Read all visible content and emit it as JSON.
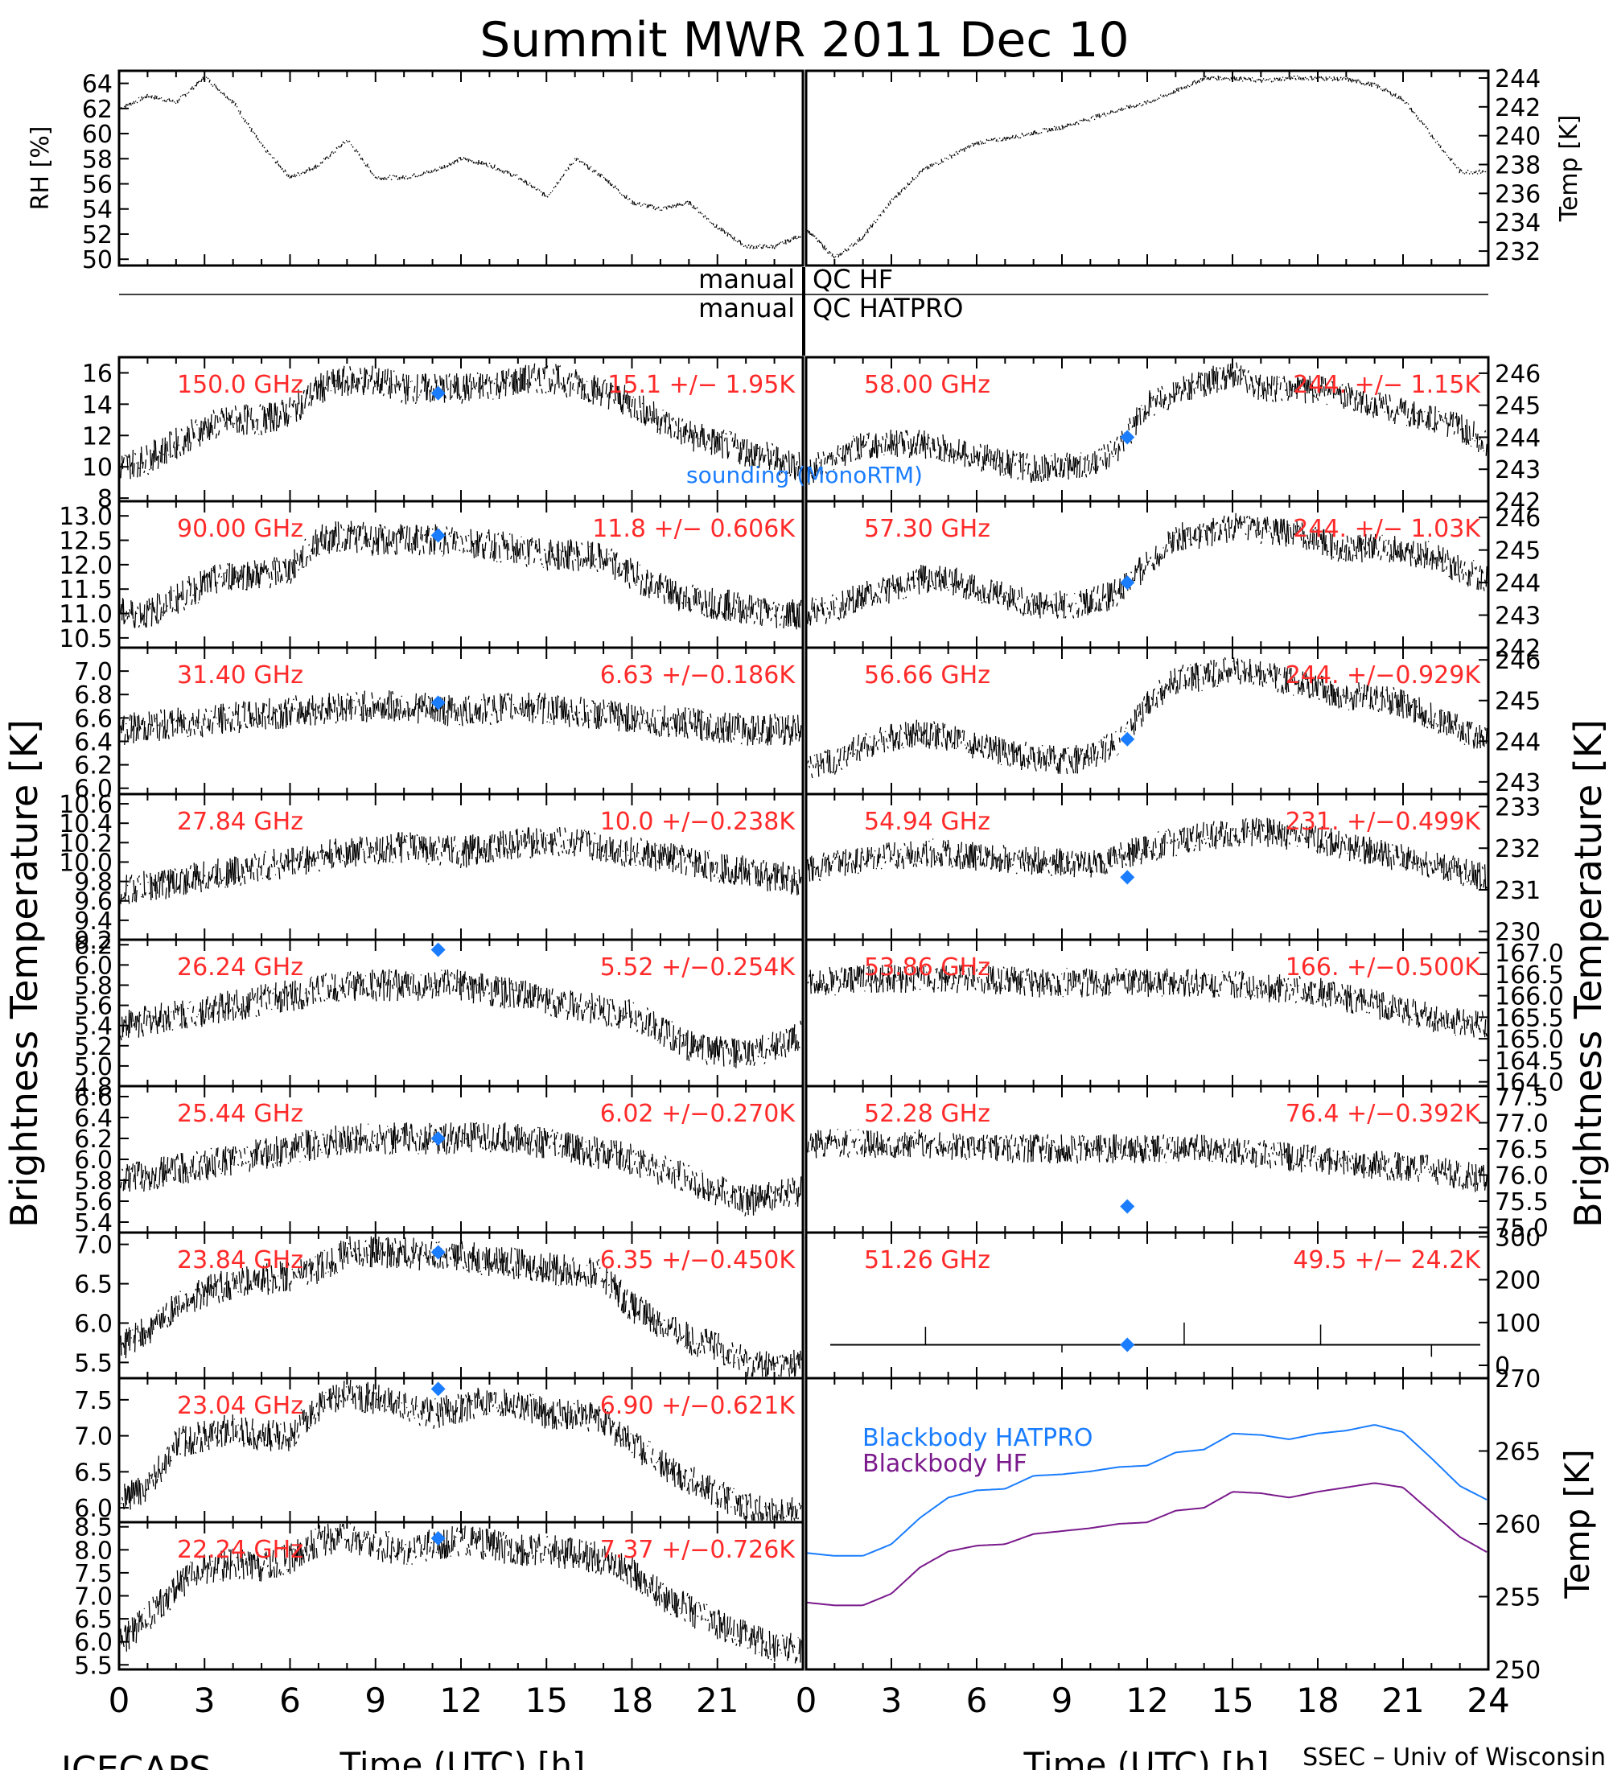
{
  "title": "Summit MWR 2011 Dec 10",
  "footer_left": "ICECAPS",
  "footer_right": "SSEC – Univ of Wisconsin",
  "x_axis_label": "Time (UTC) [h]",
  "x_ticks": [
    "0",
    "3",
    "6",
    "9",
    "12",
    "15",
    "18",
    "21",
    "24"
  ],
  "y_label_left": "Brightness Temperature [K]",
  "y_label_right": "Brightness Temperature [K]",
  "qc": {
    "left_hf": "manual",
    "right_hf": "QC HF",
    "left_hatpro": "manual",
    "right_hatpro": "QC HATPRO"
  },
  "sounding_label": "sounding (MonoRTM)",
  "colors": {
    "trace": "#000000",
    "label": "#ff2a2a",
    "sounding": "#1a7dff",
    "bb_hatpro": "#1a7dff",
    "bb_hf": "#7a1a8c"
  },
  "chart_data": [
    {
      "type": "line",
      "id": "rh",
      "ylabel": "RH [%]",
      "ylim": [
        49.5,
        65
      ],
      "yticks": [
        "64",
        "62",
        "60",
        "58",
        "56",
        "54",
        "52",
        "50"
      ],
      "x": [
        0,
        1,
        2,
        3,
        4,
        5,
        6,
        7,
        8,
        9,
        10,
        11,
        12,
        13,
        14,
        15,
        16,
        17,
        18,
        19,
        20,
        21,
        22,
        23,
        24
      ],
      "values": [
        62,
        63,
        62.5,
        64.5,
        62.5,
        59,
        56.5,
        57.5,
        59.5,
        56.5,
        56.5,
        57,
        58,
        57.5,
        56.5,
        55,
        58,
        56.5,
        54.5,
        54,
        54.5,
        52.5,
        51,
        51,
        52
      ]
    },
    {
      "type": "line",
      "id": "temp_air",
      "ylabel": "Temp [K]",
      "ylim": [
        231,
        244.5
      ],
      "yticks": [
        "244",
        "242",
        "240",
        "238",
        "236",
        "234",
        "232"
      ],
      "x": [
        0,
        1,
        2,
        3,
        4,
        5,
        6,
        7,
        8,
        9,
        10,
        11,
        12,
        13,
        14,
        15,
        16,
        17,
        18,
        19,
        20,
        21,
        22,
        23,
        24
      ],
      "values": [
        233.5,
        231.5,
        233,
        235.5,
        237.5,
        238.5,
        239.5,
        239.8,
        240.2,
        240.6,
        241.2,
        241.8,
        242.3,
        243.1,
        244,
        244,
        243.8,
        244,
        244,
        243.9,
        243.5,
        242.5,
        240,
        237.5,
        237.5
      ]
    },
    {
      "type": "scatter",
      "id": "ch_150",
      "freq": "150.0 GHz",
      "stats": "15.1 +/− 1.95K",
      "side": "left",
      "ylim": [
        7.8,
        17
      ],
      "yticks": [
        "16",
        "14",
        "12",
        "10",
        "8"
      ],
      "x": [
        0,
        1,
        2,
        3,
        4,
        5,
        6,
        7,
        8,
        9,
        10,
        11,
        12,
        13,
        14,
        15,
        16,
        17,
        18,
        19,
        20,
        21,
        22,
        23,
        24
      ],
      "values": [
        10,
        10.5,
        11.5,
        12.5,
        13,
        13,
        13.5,
        15,
        15.5,
        15.5,
        15,
        15,
        15,
        15.2,
        15.5,
        15.7,
        15.3,
        14.8,
        14,
        13,
        12,
        11.5,
        11,
        10.5,
        10
      ],
      "sounding": {
        "x": 11.2,
        "y": 14.7
      }
    },
    {
      "type": "scatter",
      "id": "ch_90",
      "freq": "90.00 GHz",
      "stats": "11.8 +/− 0.606K",
      "side": "left",
      "ylim": [
        10.3,
        13.3
      ],
      "yticks": [
        "13.0",
        "12.5",
        "12.0",
        "11.5",
        "11.0",
        "10.5"
      ],
      "x": [
        0,
        1,
        2,
        3,
        4,
        5,
        6,
        7,
        8,
        9,
        10,
        11,
        12,
        13,
        14,
        15,
        16,
        17,
        18,
        19,
        20,
        21,
        22,
        23,
        24
      ],
      "values": [
        11,
        11,
        11.3,
        11.6,
        11.8,
        11.8,
        11.9,
        12.5,
        12.6,
        12.5,
        12.5,
        12.5,
        12.5,
        12.4,
        12.3,
        12.2,
        12.2,
        12.1,
        11.8,
        11.5,
        11.3,
        11.2,
        11.1,
        11,
        11
      ],
      "sounding": {
        "x": 11.2,
        "y": 12.6
      }
    },
    {
      "type": "scatter",
      "id": "ch_31_40",
      "freq": "31.40 GHz",
      "stats": "6.63 +/−0.186K",
      "side": "left",
      "ylim": [
        5.95,
        7.2
      ],
      "yticks": [
        "7.0",
        "6.8",
        "6.6",
        "6.4",
        "6.2",
        "6.0"
      ],
      "x": [
        0,
        2,
        4,
        6,
        8,
        10,
        12,
        14,
        16,
        18,
        20,
        22,
        24
      ],
      "values": [
        6.5,
        6.55,
        6.6,
        6.65,
        6.7,
        6.7,
        6.65,
        6.7,
        6.65,
        6.6,
        6.55,
        6.5,
        6.5
      ],
      "sounding": {
        "x": 11.2,
        "y": 6.73
      }
    },
    {
      "type": "scatter",
      "id": "ch_27_84",
      "freq": "27.84 GHz",
      "stats": "10.0 +/−0.238K",
      "side": "left",
      "ylim": [
        9.2,
        10.7
      ],
      "yticks": [
        "10.6",
        "10.4",
        "10.2",
        "10.0",
        "9.8",
        "9.6",
        "9.4",
        "9.2"
      ],
      "x": [
        0,
        2,
        4,
        6,
        8,
        10,
        12,
        14,
        16,
        18,
        20,
        22,
        24
      ],
      "values": [
        9.7,
        9.8,
        9.9,
        10.0,
        10.1,
        10.15,
        10.1,
        10.2,
        10.2,
        10.1,
        10.0,
        9.9,
        9.8
      ],
      "sounding": null
    },
    {
      "type": "scatter",
      "id": "ch_26_24",
      "freq": "26.24 GHz",
      "stats": "5.52 +/−0.254K",
      "side": "left",
      "ylim": [
        4.8,
        6.25
      ],
      "yticks": [
        "6.2",
        "6.0",
        "5.8",
        "5.6",
        "5.4",
        "5.2",
        "5.0",
        "4.8"
      ],
      "x": [
        0,
        2,
        4,
        6,
        8,
        10,
        12,
        14,
        16,
        18,
        20,
        22,
        24
      ],
      "values": [
        5.4,
        5.5,
        5.6,
        5.7,
        5.8,
        5.8,
        5.8,
        5.7,
        5.6,
        5.5,
        5.2,
        5.1,
        5.3
      ],
      "sounding": {
        "x": 11.2,
        "y": 6.15
      }
    },
    {
      "type": "scatter",
      "id": "ch_25_44",
      "freq": "25.44 GHz",
      "stats": "6.02 +/−0.270K",
      "side": "left",
      "ylim": [
        5.3,
        6.7
      ],
      "yticks": [
        "6.6",
        "6.4",
        "6.2",
        "6.0",
        "5.8",
        "5.6",
        "5.4"
      ],
      "x": [
        0,
        2,
        4,
        6,
        8,
        10,
        12,
        14,
        16,
        18,
        20,
        22,
        24
      ],
      "values": [
        5.8,
        5.9,
        6.0,
        6.1,
        6.2,
        6.2,
        6.2,
        6.2,
        6.1,
        6.0,
        5.8,
        5.6,
        5.7
      ],
      "sounding": {
        "x": 11.2,
        "y": 6.2
      }
    },
    {
      "type": "scatter",
      "id": "ch_23_84",
      "freq": "23.84 GHz",
      "stats": "6.35 +/−0.450K",
      "side": "left",
      "ylim": [
        5.3,
        7.15
      ],
      "yticks": [
        "7.0",
        "6.5",
        "6.0",
        "5.5"
      ],
      "x": [
        0,
        1,
        2,
        3,
        4,
        5,
        6,
        7,
        8,
        9,
        10,
        11,
        12,
        13,
        14,
        15,
        16,
        17,
        18,
        19,
        20,
        21,
        22,
        23,
        24
      ],
      "values": [
        5.7,
        5.9,
        6.2,
        6.4,
        6.5,
        6.55,
        6.6,
        6.7,
        6.9,
        6.9,
        6.9,
        6.85,
        6.85,
        6.8,
        6.75,
        6.7,
        6.65,
        6.6,
        6.2,
        6,
        5.8,
        5.7,
        5.5,
        5.45,
        5.5
      ],
      "sounding": {
        "x": 11.2,
        "y": 6.9
      }
    },
    {
      "type": "scatter",
      "id": "ch_23_04",
      "freq": "23.04 GHz",
      "stats": "6.90 +/−0.621K",
      "side": "left",
      "ylim": [
        5.8,
        7.8
      ],
      "yticks": [
        "7.5",
        "7.0",
        "6.5",
        "6.0"
      ],
      "x": [
        0,
        1,
        2,
        3,
        4,
        5,
        6,
        7,
        8,
        9,
        10,
        11,
        12,
        13,
        14,
        15,
        16,
        17,
        18,
        19,
        20,
        21,
        22,
        23,
        24
      ],
      "values": [
        6.1,
        6.3,
        6.9,
        7.0,
        7.1,
        7.0,
        7.0,
        7.4,
        7.6,
        7.5,
        7.4,
        7.3,
        7.4,
        7.5,
        7.45,
        7.3,
        7.3,
        7.2,
        6.9,
        6.6,
        6.4,
        6.2,
        6.0,
        5.95,
        6.0
      ],
      "sounding": {
        "x": 11.2,
        "y": 7.65
      }
    },
    {
      "type": "scatter",
      "id": "ch_22_24",
      "freq": "22.24 GHz",
      "stats": "7.37 +/−0.726K",
      "side": "left",
      "ylim": [
        5.4,
        8.6
      ],
      "yticks": [
        "8.5",
        "8.0",
        "7.5",
        "7.0",
        "6.5",
        "6.0",
        "5.5"
      ],
      "x": [
        0,
        1,
        2,
        3,
        4,
        5,
        6,
        7,
        8,
        9,
        10,
        11,
        12,
        13,
        14,
        15,
        16,
        17,
        18,
        19,
        20,
        21,
        22,
        23,
        24
      ],
      "values": [
        6,
        6.5,
        7.2,
        7.6,
        7.7,
        7.6,
        7.8,
        8.2,
        8.3,
        8.1,
        8,
        8.1,
        8.2,
        8.1,
        8,
        8,
        7.9,
        7.8,
        7.5,
        7,
        6.7,
        6.4,
        6.1,
        5.9,
        5.8
      ],
      "sounding": {
        "x": 11.2,
        "y": 8.25
      }
    },
    {
      "type": "scatter",
      "id": "ch_58_00",
      "freq": "58.00 GHz",
      "stats": "244. +/− 1.15K",
      "side": "right",
      "ylim": [
        242,
        246.5
      ],
      "yticks": [
        "246",
        "245",
        "244",
        "243",
        "242"
      ],
      "x": [
        0,
        1,
        2,
        3,
        4,
        5,
        6,
        7,
        8,
        9,
        10,
        11,
        12,
        13,
        14,
        15,
        16,
        17,
        18,
        19,
        20,
        21,
        22,
        23,
        24
      ],
      "values": [
        242.9,
        243.4,
        243.7,
        243.8,
        243.8,
        243.6,
        243.4,
        243.2,
        243,
        243.1,
        243.1,
        243.7,
        245,
        245.4,
        245.7,
        246,
        245.5,
        245.5,
        245.5,
        245.3,
        245,
        244.8,
        244.6,
        244.3,
        243.8
      ],
      "sounding": {
        "x": 11.3,
        "y": 244
      }
    },
    {
      "type": "scatter",
      "id": "ch_57_30",
      "freq": "57.30 GHz",
      "stats": "244. +/− 1.03K",
      "side": "right",
      "ylim": [
        242,
        246.5
      ],
      "yticks": [
        "246",
        "245",
        "244",
        "243",
        "242"
      ],
      "x": [
        0,
        1,
        2,
        3,
        4,
        5,
        6,
        7,
        8,
        9,
        10,
        11,
        12,
        13,
        14,
        15,
        16,
        17,
        18,
        19,
        20,
        21,
        22,
        23,
        24
      ],
      "values": [
        243.1,
        243.2,
        243.6,
        243.8,
        244.1,
        244.1,
        243.8,
        243.6,
        243.3,
        243.3,
        243.4,
        243.7,
        244.6,
        245.4,
        245.5,
        245.7,
        245.6,
        245.5,
        245.3,
        245,
        245.1,
        245,
        244.8,
        244.4,
        244.1
      ],
      "sounding": {
        "x": 11.3,
        "y": 244
      }
    },
    {
      "type": "scatter",
      "id": "ch_56_66",
      "freq": "56.66 GHz",
      "stats": "244. +/−0.929K",
      "side": "right",
      "ylim": [
        242.7,
        246.3
      ],
      "yticks": [
        "246",
        "245",
        "244",
        "243"
      ],
      "x": [
        0,
        1,
        2,
        3,
        4,
        5,
        6,
        7,
        8,
        9,
        10,
        11,
        12,
        13,
        14,
        15,
        16,
        17,
        18,
        19,
        20,
        21,
        22,
        23,
        24
      ],
      "values": [
        243.4,
        243.5,
        243.9,
        244.1,
        244.2,
        244.1,
        243.9,
        243.7,
        243.6,
        243.5,
        243.6,
        244,
        244.9,
        245.5,
        245.6,
        245.8,
        245.6,
        245.5,
        245.3,
        245.1,
        245.1,
        244.9,
        244.6,
        244.3,
        244
      ],
      "sounding": {
        "x": 11.3,
        "y": 244.05
      }
    },
    {
      "type": "scatter",
      "id": "ch_54_94",
      "freq": "54.94 GHz",
      "stats": "231. +/−0.499K",
      "side": "right",
      "ylim": [
        229.8,
        233.3
      ],
      "yticks": [
        "233",
        "232",
        "231",
        "230"
      ],
      "x": [
        0,
        2,
        4,
        6,
        8,
        10,
        12,
        14,
        16,
        18,
        20,
        22,
        24
      ],
      "values": [
        231.5,
        231.7,
        231.9,
        231.8,
        231.7,
        231.6,
        232,
        232.3,
        232.4,
        232.2,
        231.9,
        231.6,
        231.3
      ],
      "sounding": {
        "x": 11.3,
        "y": 231.3
      }
    },
    {
      "type": "scatter",
      "id": "ch_53_86",
      "freq": "53.86 GHz",
      "stats": "166. +/−0.500K",
      "side": "right",
      "ylim": [
        163.9,
        167.3
      ],
      "yticks": [
        "167.0",
        "166.5",
        "166.0",
        "165.5",
        "165.0",
        "164.5",
        "164.0"
      ],
      "x": [
        0,
        2,
        4,
        6,
        8,
        10,
        12,
        14,
        16,
        18,
        20,
        22,
        24
      ],
      "values": [
        166.3,
        166.4,
        166.4,
        166.4,
        166.3,
        166.3,
        166.3,
        166.3,
        166.2,
        166.1,
        165.8,
        165.5,
        165.3
      ],
      "sounding": null
    },
    {
      "type": "scatter",
      "id": "ch_52_28",
      "freq": "52.28 GHz",
      "stats": "76.4 +/−0.392K",
      "side": "right",
      "ylim": [
        74.9,
        77.7
      ],
      "yticks": [
        "77.5",
        "77.0",
        "76.5",
        "76.0",
        "75.5",
        "75.0"
      ],
      "x": [
        0,
        2,
        4,
        6,
        8,
        10,
        12,
        14,
        16,
        18,
        20,
        22,
        24
      ],
      "values": [
        76.6,
        76.6,
        76.6,
        76.5,
        76.5,
        76.5,
        76.5,
        76.5,
        76.4,
        76.3,
        76.2,
        76.1,
        75.9
      ],
      "sounding": {
        "x": 11.3,
        "y": 75.4
      }
    },
    {
      "type": "scatter",
      "id": "ch_51_26",
      "freq": "51.26 GHz",
      "stats": "49.5 +/− 24.2K",
      "side": "right",
      "ylim": [
        -30,
        310
      ],
      "yticks": [
        "300",
        "200",
        "100",
        "0"
      ],
      "x": [
        0,
        24
      ],
      "values": [
        48,
        48
      ],
      "sounding": {
        "x": 11.3,
        "y": 48
      }
    },
    {
      "type": "line",
      "id": "blackbody",
      "ylabel": "Temp [K]",
      "ylim": [
        250,
        270
      ],
      "yticks": [
        "270",
        "265",
        "260",
        "255",
        "250"
      ],
      "series": [
        {
          "name": "Blackbody HATPRO",
          "x": [
            0,
            1,
            2,
            3,
            4,
            5,
            6,
            7,
            8,
            9,
            10,
            11,
            12,
            13,
            14,
            15,
            16,
            17,
            18,
            19,
            20,
            21,
            22,
            23,
            24
          ],
          "values": [
            258,
            257.8,
            257.8,
            258.6,
            260.4,
            261.8,
            262.3,
            262.4,
            263.3,
            263.4,
            263.6,
            263.9,
            264,
            264.9,
            265.1,
            266.2,
            266.1,
            265.8,
            266.2,
            266.4,
            266.8,
            266.3,
            264.5,
            262.6,
            261.6
          ]
        },
        {
          "name": "Blackbody HF",
          "x": [
            0,
            1,
            2,
            3,
            4,
            5,
            6,
            7,
            8,
            9,
            10,
            11,
            12,
            13,
            14,
            15,
            16,
            17,
            18,
            19,
            20,
            21,
            22,
            23,
            24
          ],
          "values": [
            254.6,
            254.4,
            254.4,
            255.2,
            257,
            258.1,
            258.5,
            258.6,
            259.3,
            259.5,
            259.7,
            260,
            260.1,
            260.9,
            261.1,
            262.2,
            262.1,
            261.8,
            262.2,
            262.5,
            262.8,
            262.5,
            260.8,
            259.1,
            258
          ]
        }
      ]
    }
  ]
}
